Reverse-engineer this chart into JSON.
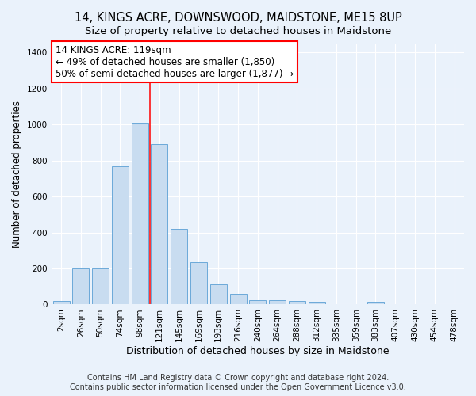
{
  "title": "14, KINGS ACRE, DOWNSWOOD, MAIDSTONE, ME15 8UP",
  "subtitle": "Size of property relative to detached houses in Maidstone",
  "xlabel": "Distribution of detached houses by size in Maidstone",
  "ylabel": "Number of detached properties",
  "categories": [
    "2sqm",
    "26sqm",
    "50sqm",
    "74sqm",
    "98sqm",
    "121sqm",
    "145sqm",
    "169sqm",
    "193sqm",
    "216sqm",
    "240sqm",
    "264sqm",
    "288sqm",
    "312sqm",
    "335sqm",
    "359sqm",
    "383sqm",
    "407sqm",
    "430sqm",
    "454sqm",
    "478sqm"
  ],
  "values": [
    20,
    200,
    200,
    770,
    1010,
    890,
    420,
    235,
    110,
    60,
    25,
    25,
    20,
    15,
    0,
    0,
    15,
    0,
    0,
    0,
    0
  ],
  "bar_color": "#c8dcf0",
  "bar_edge_color": "#5a9fd4",
  "ylim": [
    0,
    1450
  ],
  "yticks": [
    0,
    200,
    400,
    600,
    800,
    1000,
    1200,
    1400
  ],
  "annotation_box_text_line1": "14 KINGS ACRE: 119sqm",
  "annotation_box_text_line2": "← 49% of detached houses are smaller (1,850)",
  "annotation_box_text_line3": "50% of semi-detached houses are larger (1,877) →",
  "footer_line1": "Contains HM Land Registry data © Crown copyright and database right 2024.",
  "footer_line2": "Contains public sector information licensed under the Open Government Licence v3.0.",
  "background_color": "#eaf2fb",
  "plot_background": "#eaf2fb",
  "grid_color": "#ffffff",
  "red_line_x": 4.5,
  "title_fontsize": 10.5,
  "subtitle_fontsize": 9.5,
  "xlabel_fontsize": 9,
  "ylabel_fontsize": 8.5,
  "tick_fontsize": 7.5,
  "annotation_fontsize": 8.5,
  "footer_fontsize": 7
}
